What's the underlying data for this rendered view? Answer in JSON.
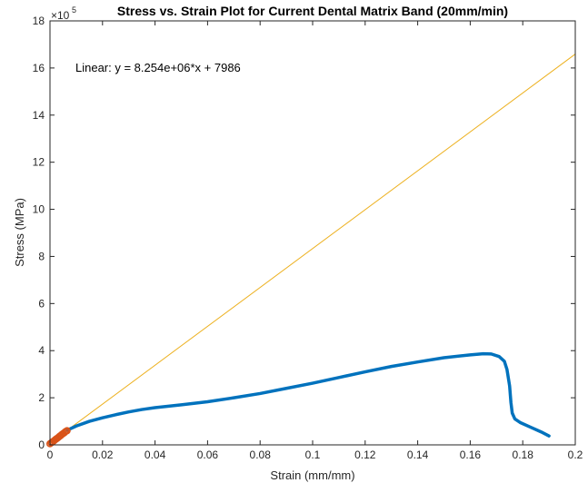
{
  "chart_data": {
    "type": "line",
    "title": "Stress vs. Strain Plot for Current Dental Matrix Band (20mm/min)",
    "xlabel": "Strain (mm/mm)",
    "ylabel": "Stress (MPa)",
    "y_exponent_label": "×10",
    "y_exponent_power": "5",
    "xlim": [
      0,
      0.2
    ],
    "ylim": [
      0,
      18
    ],
    "y_scale_factor": 100000,
    "x_ticks": [
      0,
      0.02,
      0.04,
      0.06,
      0.08,
      0.1,
      0.12,
      0.14,
      0.16,
      0.18,
      0.2
    ],
    "x_tick_labels": [
      "0",
      "0.02",
      "0.04",
      "0.06",
      "0.08",
      "0.1",
      "0.12",
      "0.14",
      "0.16",
      "0.18",
      "0.2"
    ],
    "y_ticks": [
      0,
      2,
      4,
      6,
      8,
      10,
      12,
      14,
      16,
      18
    ],
    "y_tick_labels": [
      "0",
      "2",
      "4",
      "6",
      "8",
      "10",
      "12",
      "14",
      "16",
      "18"
    ],
    "grid": false,
    "annotation": "Linear:  y = 8.254e+06*x + 7986",
    "series": [
      {
        "color": "#0072BD",
        "style": "thick-line",
        "points": [
          [
            0.0065,
            0.62
          ],
          [
            0.01,
            0.8
          ],
          [
            0.015,
            1.0
          ],
          [
            0.02,
            1.15
          ],
          [
            0.025,
            1.28
          ],
          [
            0.03,
            1.4
          ],
          [
            0.035,
            1.5
          ],
          [
            0.04,
            1.58
          ],
          [
            0.05,
            1.7
          ],
          [
            0.06,
            1.83
          ],
          [
            0.07,
            2.0
          ],
          [
            0.08,
            2.18
          ],
          [
            0.09,
            2.4
          ],
          [
            0.1,
            2.62
          ],
          [
            0.11,
            2.86
          ],
          [
            0.12,
            3.1
          ],
          [
            0.13,
            3.33
          ],
          [
            0.14,
            3.52
          ],
          [
            0.15,
            3.7
          ],
          [
            0.16,
            3.82
          ],
          [
            0.165,
            3.87
          ],
          [
            0.168,
            3.86
          ],
          [
            0.171,
            3.75
          ],
          [
            0.173,
            3.55
          ],
          [
            0.174,
            3.2
          ],
          [
            0.175,
            2.5
          ],
          [
            0.1755,
            1.8
          ],
          [
            0.176,
            1.35
          ],
          [
            0.177,
            1.1
          ],
          [
            0.179,
            0.95
          ],
          [
            0.183,
            0.75
          ],
          [
            0.187,
            0.55
          ],
          [
            0.19,
            0.38
          ]
        ]
      },
      {
        "color": "#D95319",
        "style": "markers",
        "points": [
          [
            0.0,
            0.05
          ],
          [
            0.0005,
            0.09
          ],
          [
            0.001,
            0.13
          ],
          [
            0.0015,
            0.17
          ],
          [
            0.002,
            0.22
          ],
          [
            0.0025,
            0.26
          ],
          [
            0.003,
            0.3
          ],
          [
            0.0035,
            0.35
          ],
          [
            0.004,
            0.39
          ],
          [
            0.0045,
            0.44
          ],
          [
            0.005,
            0.48
          ],
          [
            0.0055,
            0.52
          ],
          [
            0.006,
            0.57
          ],
          [
            0.0065,
            0.6
          ]
        ]
      },
      {
        "color": "#EDB120",
        "style": "thin-line",
        "slope": 8254000,
        "intercept": 7986,
        "points": [
          [
            0,
            0.07986
          ],
          [
            0.2,
            16.59
          ]
        ]
      }
    ]
  }
}
